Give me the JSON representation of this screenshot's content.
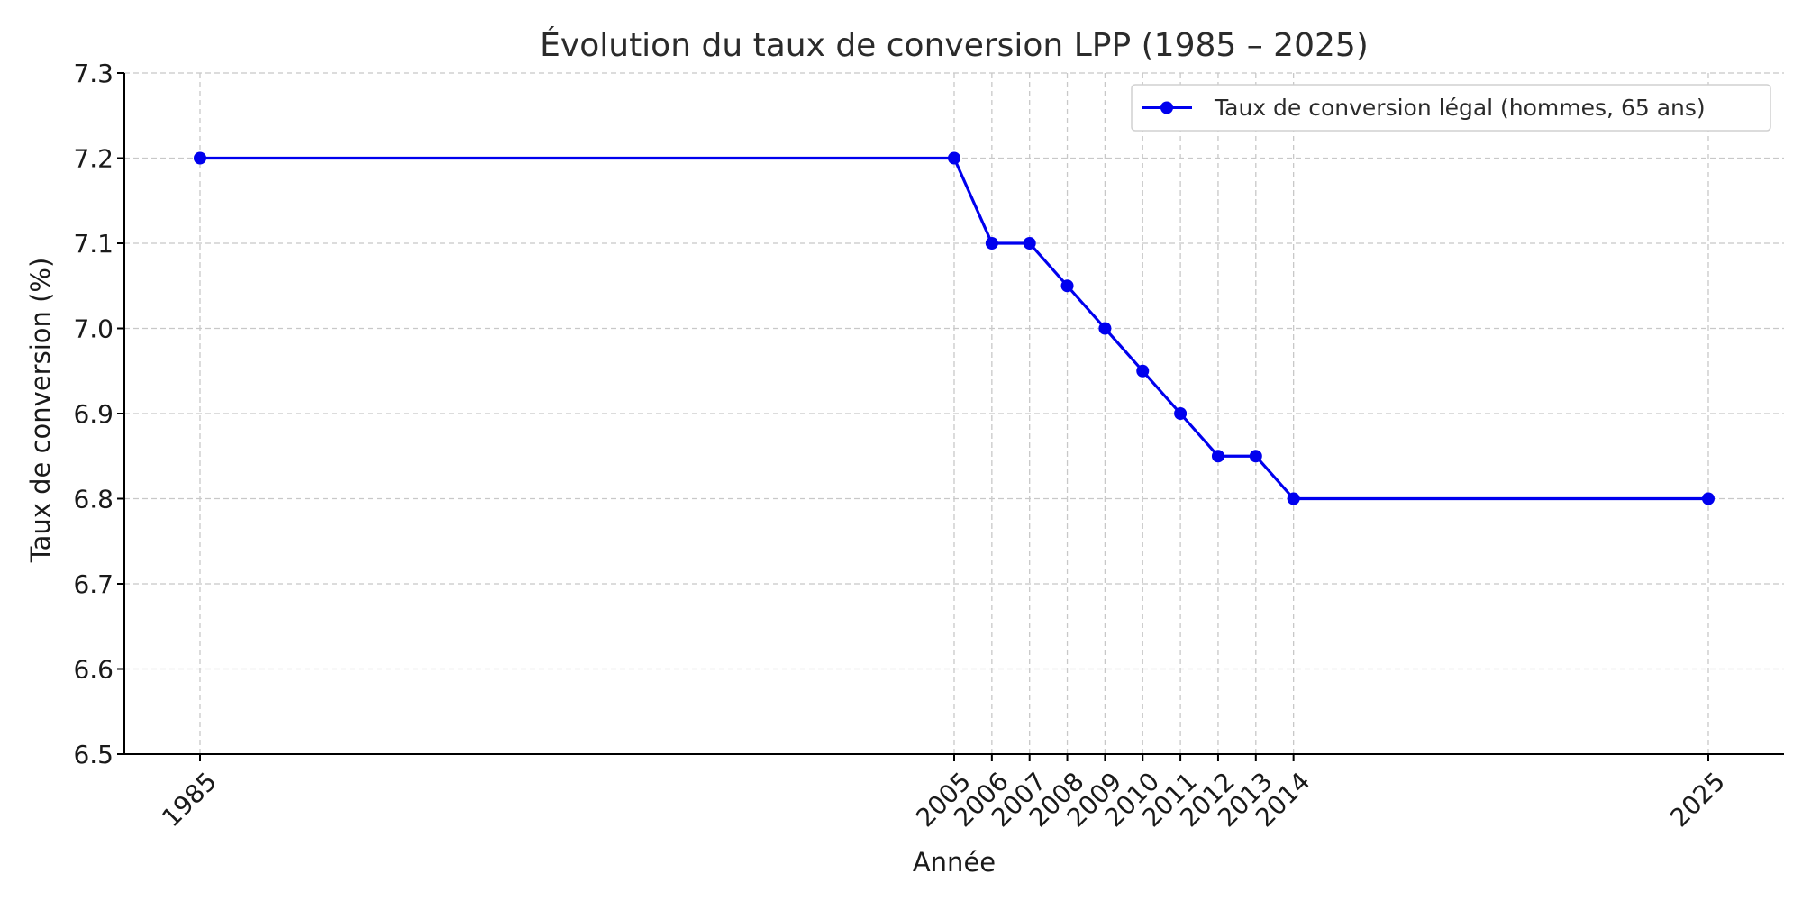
{
  "chart_data": {
    "type": "line",
    "title": "Évolution du taux de conversion LPP (1985 – 2025)",
    "xlabel": "Année",
    "ylabel": "Taux de conversion (%)",
    "x": [
      1985,
      2005,
      2006,
      2007,
      2008,
      2009,
      2010,
      2011,
      2012,
      2013,
      2014,
      2025
    ],
    "x_tick_labels": [
      "1985",
      "2005",
      "2006",
      "2007",
      "2008",
      "2009",
      "2010",
      "2011",
      "2012",
      "2013",
      "2014",
      "2025"
    ],
    "ylim": [
      6.5,
      7.3
    ],
    "y_ticks": [
      6.5,
      6.6,
      6.7,
      6.8,
      6.9,
      7.0,
      7.1,
      7.2,
      7.3
    ],
    "y_tick_labels": [
      "6.5",
      "6.6",
      "6.7",
      "6.8",
      "6.9",
      "7.0",
      "7.1",
      "7.2",
      "7.3"
    ],
    "series": [
      {
        "name": "Taux de conversion légal (hommes, 65 ans)",
        "color": "#0000ee",
        "marker": "circle",
        "values": [
          7.2,
          7.2,
          7.1,
          7.1,
          7.05,
          7.0,
          6.95,
          6.9,
          6.85,
          6.85,
          6.8,
          6.8
        ]
      }
    ],
    "grid": true,
    "legend_position": "top-right"
  }
}
